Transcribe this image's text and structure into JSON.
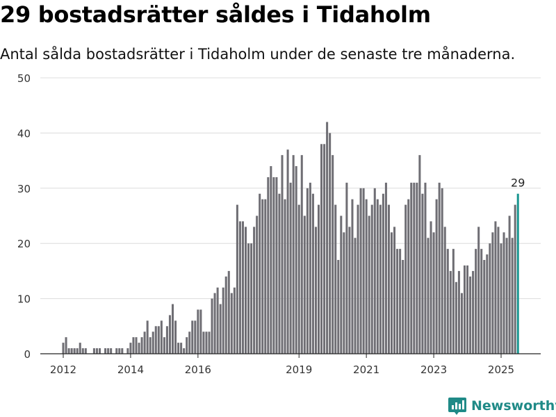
{
  "header": {
    "title": "29 bostadsrätter såldes i Tidaholm",
    "subtitle": "Antal sålda bostadsrätter i Tidaholm under de senaste tre månaderna."
  },
  "brand": {
    "name": "Newsworthy",
    "color": "#1f8a87"
  },
  "chart_data": {
    "type": "bar",
    "title": "29 bostadsrätter såldes i Tidaholm",
    "subtitle": "Antal sålda bostadsrätter i Tidaholm under de senaste tre månaderna.",
    "xlabel": "",
    "ylabel": "",
    "ylim": [
      0,
      50
    ],
    "yticks": [
      0,
      10,
      20,
      30,
      40,
      50
    ],
    "xticks": [
      2012,
      2014,
      2016,
      2019,
      2021,
      2023,
      2025
    ],
    "grid": true,
    "legend": "none",
    "x_start": "2012-01",
    "bar_color": "#6f6e74",
    "highlight_color": "#1a9690",
    "highlight_label": "29",
    "series": [
      {
        "values": [
          2,
          3,
          1,
          1,
          1,
          1,
          2,
          1,
          1,
          0,
          0,
          1,
          1,
          1,
          0,
          1,
          1,
          1,
          0,
          1,
          1,
          1,
          0,
          1,
          2,
          3,
          3,
          2,
          3,
          4,
          6,
          3,
          4,
          5,
          5,
          6,
          3,
          5,
          7,
          9,
          6,
          2,
          2,
          1,
          3,
          4,
          6,
          6,
          8,
          8,
          4,
          4,
          4,
          10,
          11,
          12,
          9,
          12,
          14,
          15,
          11,
          12,
          27,
          24,
          24,
          23,
          20,
          20,
          23,
          25,
          29,
          28,
          28,
          32,
          34,
          32,
          32,
          29,
          36,
          28,
          37,
          31,
          36,
          34,
          27,
          36,
          25,
          30,
          31,
          29,
          23,
          27,
          38,
          38,
          42,
          40,
          36,
          27,
          17,
          25,
          22,
          31,
          23,
          28,
          21,
          27,
          30,
          30,
          28,
          25,
          27,
          30,
          28,
          27,
          29,
          31,
          27,
          22,
          23,
          19,
          19,
          17,
          27,
          28,
          31,
          31,
          31,
          36,
          29,
          31,
          21,
          24,
          22,
          28,
          31,
          30,
          23,
          19,
          15,
          19,
          13,
          15,
          11,
          16,
          16,
          14,
          15,
          19,
          23,
          19,
          17,
          18,
          20,
          22,
          24,
          23,
          20,
          22,
          21,
          25,
          21,
          27,
          29
        ]
      }
    ]
  }
}
